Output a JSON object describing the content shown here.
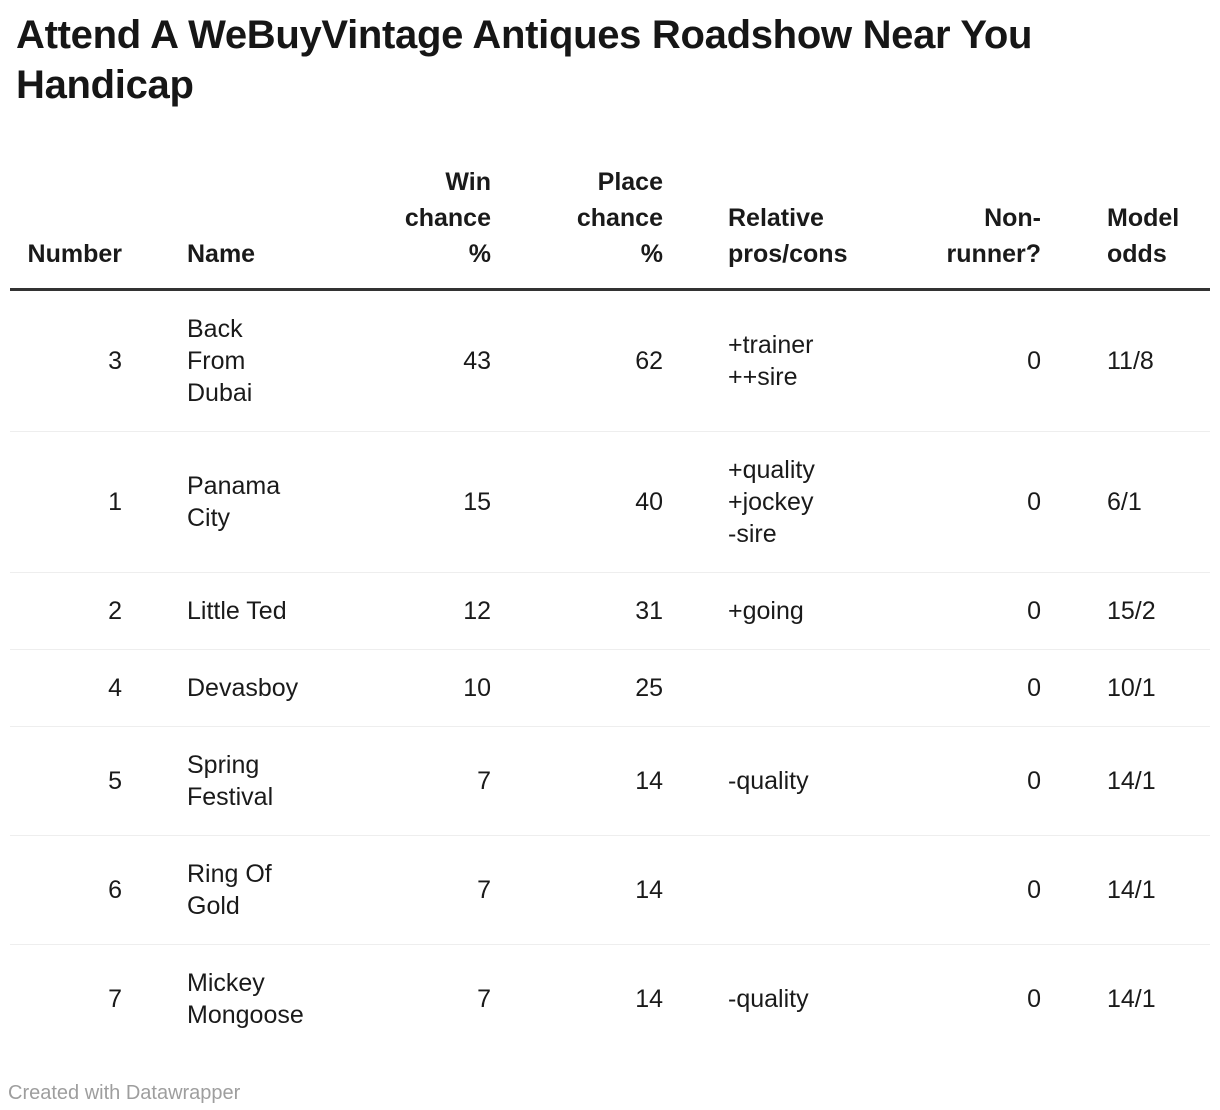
{
  "title": "Attend A WeBuyVintage Antiques Roadshow Near You Handicap",
  "footer": {
    "credit": "Created with Datawrapper"
  },
  "colors": {
    "text": "#1a1a1a",
    "header_rule": "#333333",
    "row_divider": "#eeeeee",
    "credit_text": "#9e9e9e",
    "background": "#ffffff"
  },
  "table": {
    "headers": {
      "number": "Number",
      "name": "Name",
      "win": "Win\nchance\n%",
      "place": "Place\nchance\n%",
      "pros_cons": "Relative\npros/cons",
      "non_runner": "Non-\nrunner?",
      "odds": "Model\nodds"
    },
    "rows": [
      {
        "number": "3",
        "name": "Back\nFrom\nDubai",
        "win": "43",
        "place": "62",
        "pros_cons": "+trainer\n++sire",
        "non_runner": "0",
        "odds": "11/8"
      },
      {
        "number": "1",
        "name": "Panama\nCity",
        "win": "15",
        "place": "40",
        "pros_cons": "+quality\n+jockey\n-sire",
        "non_runner": "0",
        "odds": "6/1"
      },
      {
        "number": "2",
        "name": "Little Ted",
        "win": "12",
        "place": "31",
        "pros_cons": "+going",
        "non_runner": "0",
        "odds": "15/2"
      },
      {
        "number": "4",
        "name": "Devasboy",
        "win": "10",
        "place": "25",
        "pros_cons": "",
        "non_runner": "0",
        "odds": "10/1"
      },
      {
        "number": "5",
        "name": "Spring\nFestival",
        "win": "7",
        "place": "14",
        "pros_cons": "-quality",
        "non_runner": "0",
        "odds": "14/1"
      },
      {
        "number": "6",
        "name": "Ring Of\nGold",
        "win": "7",
        "place": "14",
        "pros_cons": "",
        "non_runner": "0",
        "odds": "14/1"
      },
      {
        "number": "7",
        "name": "Mickey\nMongoose",
        "win": "7",
        "place": "14",
        "pros_cons": "-quality",
        "non_runner": "0",
        "odds": "14/1"
      }
    ]
  },
  "chart_data": {
    "type": "table",
    "title": "Attend A WeBuyVintage Antiques Roadshow Near You Handicap",
    "columns": [
      "Number",
      "Name",
      "Win chance %",
      "Place chance %",
      "Relative pros/cons",
      "Non-runner?",
      "Model odds"
    ],
    "rows": [
      [
        3,
        "Back From Dubai",
        43,
        62,
        "+trainer ++sire",
        0,
        "11/8"
      ],
      [
        1,
        "Panama City",
        15,
        40,
        "+quality +jockey -sire",
        0,
        "6/1"
      ],
      [
        2,
        "Little Ted",
        12,
        31,
        "+going",
        0,
        "15/2"
      ],
      [
        4,
        "Devasboy",
        10,
        25,
        "",
        0,
        "10/1"
      ],
      [
        5,
        "Spring Festival",
        7,
        14,
        "-quality",
        0,
        "14/1"
      ],
      [
        6,
        "Ring Of Gold",
        7,
        14,
        "",
        0,
        "14/1"
      ],
      [
        7,
        "Mickey Mongoose",
        7,
        14,
        "-quality",
        0,
        "14/1"
      ]
    ],
    "footer_note": "Created with Datawrapper"
  }
}
